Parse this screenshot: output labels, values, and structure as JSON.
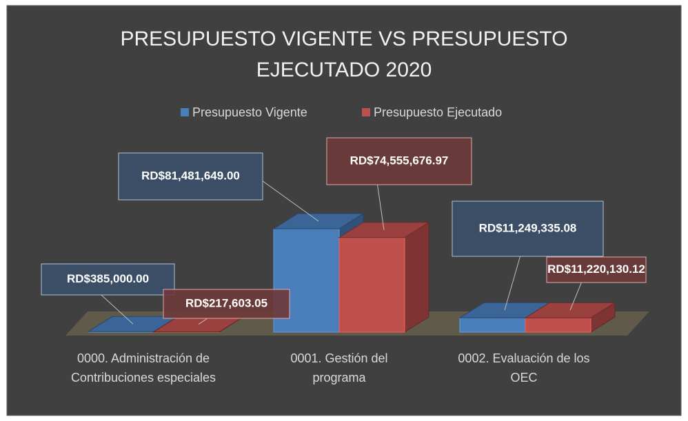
{
  "chart_data": {
    "type": "bar3d",
    "title": "PRESUPUESTO VIGENTE VS PRESUPUESTO EJECUTADO 2020",
    "categories": [
      "0000. Administración de Contribuciones especiales",
      "0001. Gestión del programa",
      "0002. Evaluación de los OEC"
    ],
    "series": [
      {
        "name": "Presupuesto Vigente",
        "color": "#4a7ebb",
        "values": [
          385000.0,
          81481649.0,
          11249335.08
        ],
        "value_labels": [
          "RD$385,000.00",
          "RD$81,481,649.00",
          "RD$11,249,335.08"
        ]
      },
      {
        "name": "Presupuesto Ejecutado",
        "color": "#c0504d",
        "values": [
          217603.05,
          74555676.97,
          11220130.12
        ],
        "value_labels": [
          "RD$217,603.05",
          "RD$74,555,676.97",
          "RD$11,220,130.12"
        ]
      }
    ],
    "legend": "top"
  }
}
